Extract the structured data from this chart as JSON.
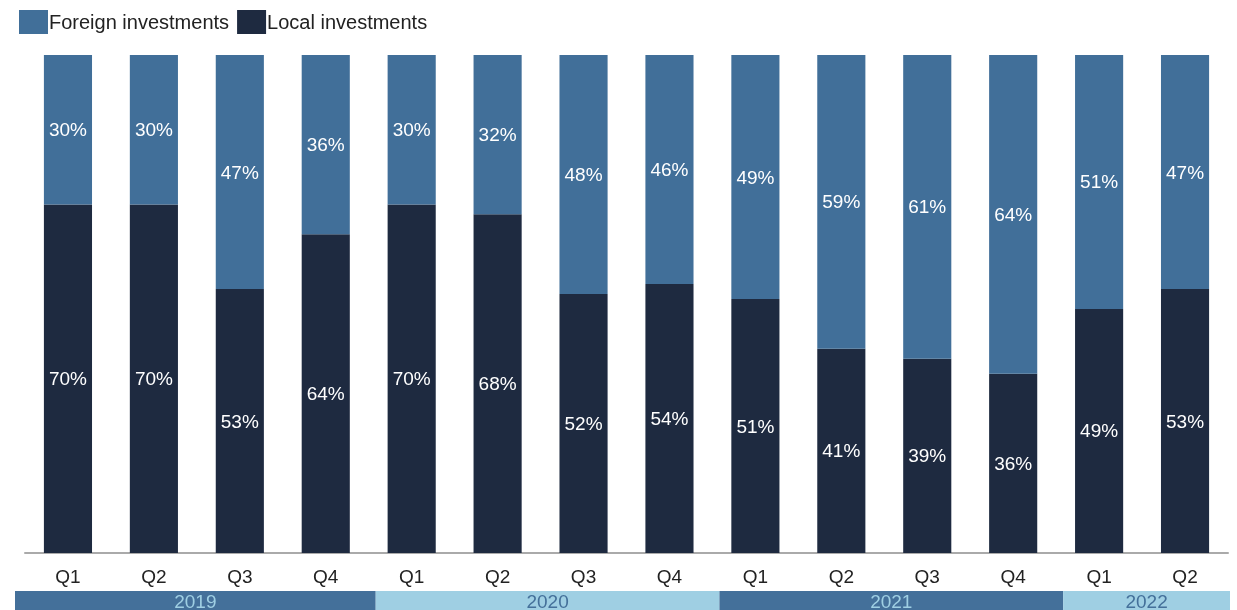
{
  "chart_data": {
    "type": "bar",
    "stacked": true,
    "categories": [
      "Q1",
      "Q2",
      "Q3",
      "Q4",
      "Q1",
      "Q2",
      "Q3",
      "Q4",
      "Q1",
      "Q2",
      "Q3",
      "Q4",
      "Q1",
      "Q2"
    ],
    "series": [
      {
        "name": "Local investments",
        "color": "#1e2a40",
        "values": [
          70,
          70,
          53,
          64,
          70,
          68,
          52,
          54,
          51,
          41,
          39,
          36,
          49,
          53
        ],
        "value_labels": [
          "70%",
          "70%",
          "53%",
          "64%",
          "70%",
          "68%",
          "52%",
          "54%",
          "51%",
          "41%",
          "39%",
          "36%",
          "49%",
          "53%"
        ]
      },
      {
        "name": "Foreign investments",
        "color": "#416f99",
        "values": [
          30,
          30,
          47,
          36,
          30,
          32,
          48,
          46,
          49,
          59,
          61,
          64,
          51,
          47
        ],
        "value_labels": [
          "30%",
          "30%",
          "47%",
          "36%",
          "30%",
          "32%",
          "48%",
          "46%",
          "49%",
          "59%",
          "61%",
          "64%",
          "51%",
          "47%"
        ]
      }
    ],
    "ylim": [
      0,
      100
    ],
    "tick_labels": "x",
    "legend": "top left",
    "annotations": [
      "2019",
      "2020",
      "2021",
      "2022"
    ]
  }
}
